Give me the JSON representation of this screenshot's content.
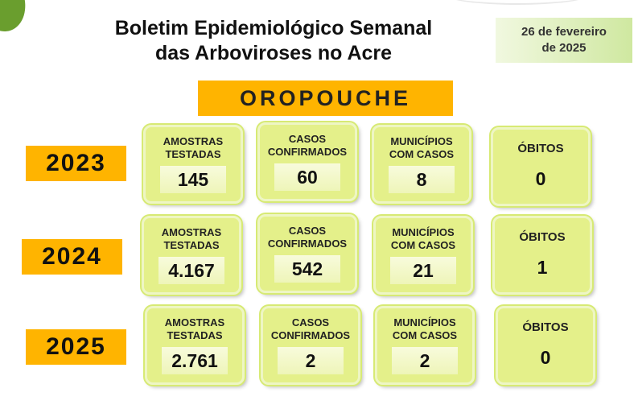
{
  "header": {
    "title_line1": "Boletim Epidemiológico Semanal",
    "title_line2": "das Arboviroses no Acre",
    "date_line1": "26 de fevereiro",
    "date_line2": "de 2025"
  },
  "disease": "OROPOUCHE",
  "labels": {
    "amostras_line1": "AMOSTRAS",
    "amostras_line2": "TESTADAS",
    "casos_line1": "CASOS",
    "casos_line2": "CONFIRMADOS",
    "municipios_line1": "MUNICÍPIOS",
    "municipios_line2": "COM CASOS",
    "obitos": "ÓBITOS"
  },
  "rows": [
    {
      "year": "2023",
      "amostras": "145",
      "casos": "60",
      "municipios": "8",
      "obitos": "0"
    },
    {
      "year": "2024",
      "amostras": "4.167",
      "casos": "542",
      "municipios": "21",
      "obitos": "1"
    },
    {
      "year": "2025",
      "amostras": "2.761",
      "casos": "2",
      "municipios": "2",
      "obitos": "0"
    }
  ],
  "colors": {
    "year_banner": "#ffb400",
    "card_fill": "#e4f08a",
    "date_box": "#cfe8a0",
    "leaf": "#6a9e2e"
  }
}
